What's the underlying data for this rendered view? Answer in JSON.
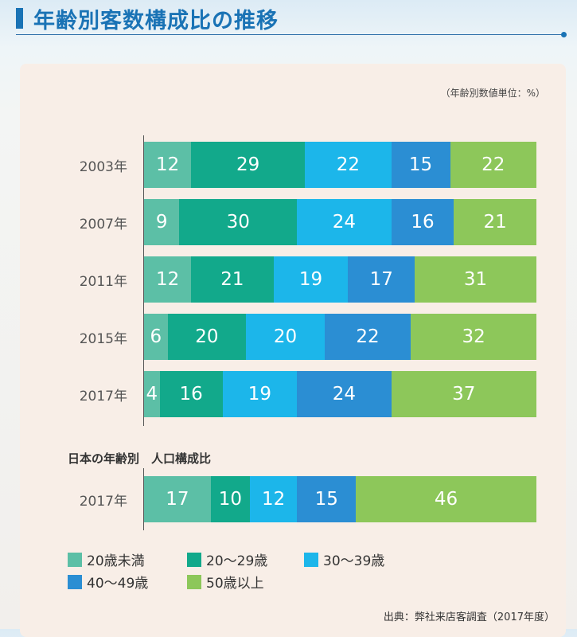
{
  "title": "年齢別客数構成比の推移",
  "chart_data": [
    {
      "type": "bar",
      "orientation": "horizontal",
      "stacked": true,
      "unit_note": "（年齢別数値単位：%）",
      "categories": [
        "2003年",
        "2007年",
        "2011年",
        "2015年",
        "2017年"
      ],
      "series": [
        {
          "name": "20歳未満",
          "color": "#5cbfa6",
          "values": [
            12,
            9,
            12,
            6,
            4
          ]
        },
        {
          "name": "20〜29歳",
          "color": "#12a98b",
          "values": [
            29,
            30,
            21,
            20,
            16
          ]
        },
        {
          "name": "30〜39歳",
          "color": "#1cb6ea",
          "values": [
            22,
            24,
            19,
            20,
            19
          ]
        },
        {
          "name": "40〜49歳",
          "color": "#2b8ed3",
          "values": [
            15,
            16,
            17,
            22,
            24
          ]
        },
        {
          "name": "50歳以上",
          "color": "#8dc75a",
          "values": [
            22,
            21,
            31,
            32,
            37
          ]
        }
      ]
    },
    {
      "type": "bar",
      "orientation": "horizontal",
      "stacked": true,
      "title": "日本の年齢別　人口構成比",
      "categories": [
        "2017年"
      ],
      "series": [
        {
          "name": "20歳未満",
          "color": "#5cbfa6",
          "values": [
            17
          ]
        },
        {
          "name": "20〜29歳",
          "color": "#12a98b",
          "values": [
            10
          ]
        },
        {
          "name": "30〜39歳",
          "color": "#1cb6ea",
          "values": [
            12
          ]
        },
        {
          "name": "40〜49歳",
          "color": "#2b8ed3",
          "values": [
            15
          ]
        },
        {
          "name": "50歳以上",
          "color": "#8dc75a",
          "values": [
            46
          ]
        }
      ]
    }
  ],
  "source": "出典：弊社来店客調査（2017年度）"
}
